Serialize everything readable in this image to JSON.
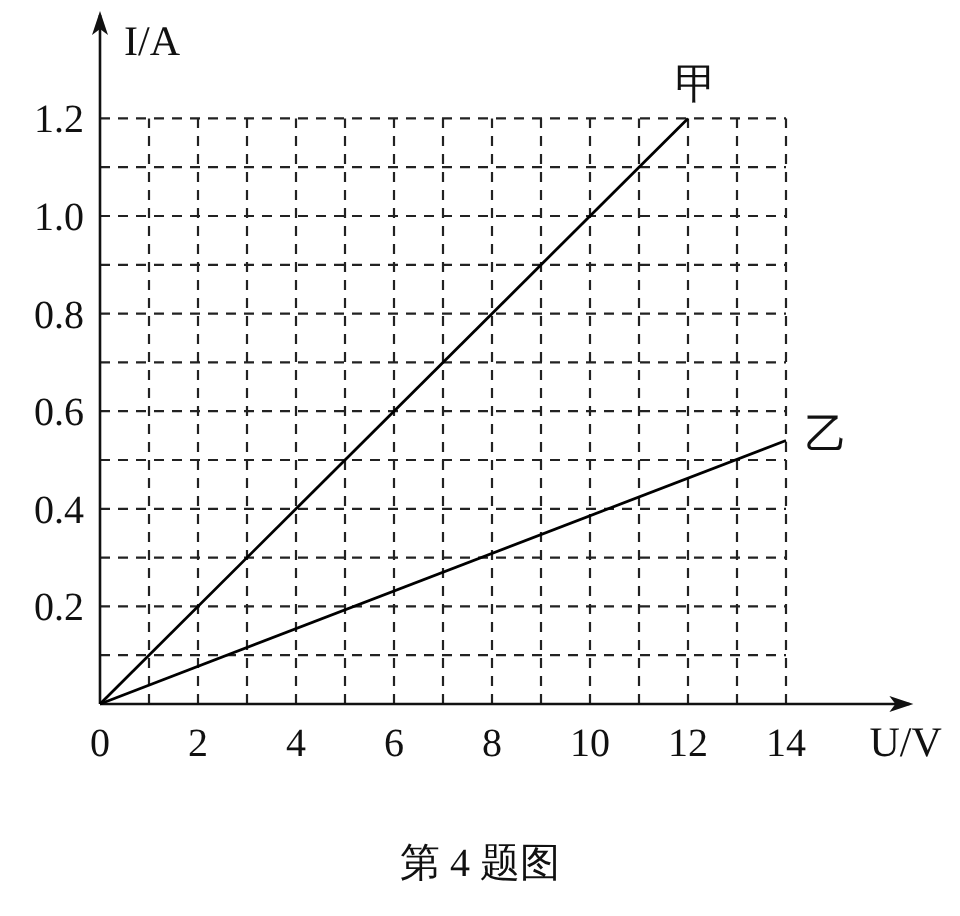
{
  "chart_data": {
    "type": "line",
    "xlabel": "U/V",
    "ylabel": "I/A",
    "series": [
      {
        "name": "甲",
        "color": "#000000",
        "x": [
          0,
          12
        ],
        "values": [
          0,
          1.2
        ]
      },
      {
        "name": "乙",
        "color": "#000000",
        "x": [
          0,
          14
        ],
        "values": [
          0,
          0.54
        ]
      }
    ],
    "xlim": [
      0,
      16.6
    ],
    "ylim": [
      0,
      1.42
    ],
    "xticks": [
      0,
      {
        "value": 1,
        "label": null
      },
      2,
      {
        "value": 3,
        "label": null
      },
      4,
      {
        "value": 5,
        "label": null
      },
      6,
      {
        "value": 7,
        "label": null
      },
      8,
      {
        "value": 9,
        "label": null
      },
      10,
      {
        "value": 11,
        "label": null
      },
      12,
      {
        "value": 13,
        "label": null
      },
      14
    ],
    "yticks": [
      {
        "value": 0.1,
        "label": null
      },
      0.2,
      {
        "value": 0.3,
        "label": null
      },
      0.4,
      {
        "value": 0.5,
        "label": null
      },
      0.6,
      {
        "value": 0.7,
        "label": null
      },
      0.8,
      {
        "value": 0.9,
        "label": null
      },
      {
        "value": 1,
        "label": "1.0"
      },
      {
        "value": 1.1,
        "label": null
      },
      1.2
    ],
    "grid": true,
    "marker": "none",
    "line_style": "solid",
    "annotations": [
      "第 4 题图"
    ]
  }
}
